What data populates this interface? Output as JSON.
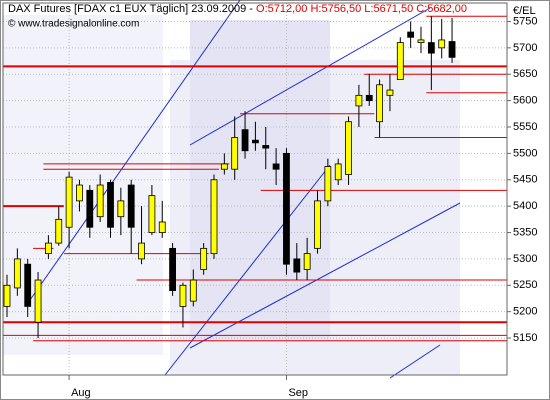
{
  "chart_data": {
    "type": "candlestick",
    "header": "DAX Futures [FDAX c1 EUX  Täglich] 23.09.2009 -",
    "header_values": "O:5712,00 H:5756,50 L:5671,50 C:5682,00",
    "watermark": "© www.tradesignalonline.com",
    "y_axis_label": "€/EL",
    "categories": [
      null,
      null,
      null,
      null,
      null,
      null,
      "Aug",
      null,
      null,
      null,
      null,
      null,
      null,
      null,
      null,
      null,
      null,
      null,
      null,
      null,
      null,
      null,
      null,
      null,
      null,
      null,
      null,
      "Sep",
      null,
      null,
      null,
      null,
      null,
      null,
      null,
      null,
      null,
      null,
      null,
      null,
      null,
      null,
      null,
      null
    ],
    "open": [
      5210,
      5245,
      5290,
      5180,
      5310,
      5330,
      5360,
      5410,
      5430,
      5380,
      5445,
      5380,
      5440,
      5300,
      5350,
      5350,
      5320,
      5210,
      5220,
      5280,
      5310,
      5470,
      5470,
      5545,
      5525,
      5515,
      5480,
      5500,
      5300,
      5280,
      5320,
      5410,
      5450,
      5460,
      5590,
      5610,
      5560,
      5610,
      5640,
      5730,
      5710,
      5710,
      5700,
      5712
    ],
    "high": [
      5270,
      5320,
      5300,
      5275,
      5345,
      5400,
      5465,
      5450,
      5440,
      5460,
      5450,
      5435,
      5450,
      5400,
      5440,
      5410,
      5330,
      5255,
      5280,
      5330,
      5460,
      5500,
      5570,
      5580,
      5560,
      5550,
      5510,
      5510,
      5330,
      5340,
      5430,
      5490,
      5490,
      5570,
      5630,
      5650,
      5640,
      5650,
      5720,
      5750,
      5740,
      5760,
      5755,
      5756.5
    ],
    "low": [
      5190,
      5230,
      5190,
      5150,
      5300,
      5325,
      5320,
      5390,
      5340,
      5370,
      5340,
      5345,
      5310,
      5290,
      5345,
      5340,
      5230,
      5170,
      5210,
      5270,
      5300,
      5460,
      5450,
      5490,
      5505,
      5470,
      5440,
      5270,
      5260,
      5260,
      5310,
      5400,
      5440,
      5440,
      5550,
      5590,
      5530,
      5580,
      5640,
      5700,
      5690,
      5620,
      5680,
      5671.5
    ],
    "close": [
      5250,
      5300,
      5210,
      5260,
      5330,
      5375,
      5455,
      5440,
      5360,
      5440,
      5360,
      5410,
      5360,
      5330,
      5420,
      5370,
      5240,
      5250,
      5260,
      5320,
      5450,
      5480,
      5530,
      5505,
      5520,
      5510,
      5470,
      5290,
      5275,
      5310,
      5410,
      5475,
      5480,
      5560,
      5610,
      5600,
      5630,
      5620,
      5710,
      5720,
      5715,
      5690,
      5715,
      5682
    ],
    "up_color": "#ffff00",
    "down_color": "#000000",
    "level_color": "#e00000",
    "levels": [
      {
        "value": 5665,
        "start": 0,
        "end": 48,
        "thick": true
      },
      {
        "value": 5400,
        "start": 0,
        "end": 5,
        "thick": true
      },
      {
        "value": 5180,
        "start": 0,
        "end": 48,
        "thick": true
      },
      {
        "value": 5155,
        "start": 0,
        "end": 48,
        "thick": false
      },
      {
        "value": 5145,
        "start": 3,
        "end": 48,
        "thick": false
      },
      {
        "value": 5480,
        "start": 4,
        "end": 21,
        "thick": false
      },
      {
        "value": 5470,
        "start": 4,
        "end": 20,
        "thick": false
      },
      {
        "value": 5320,
        "start": 3,
        "end": 4,
        "thick": false
      },
      {
        "value": 5310,
        "start": 6,
        "end": 19,
        "thick": false
      },
      {
        "value": 5260,
        "start": 13,
        "end": 48,
        "thick": false
      },
      {
        "value": 5575,
        "start": 23,
        "end": 35,
        "thick": false
      },
      {
        "value": 5430,
        "start": 25,
        "end": 48,
        "thick": false
      },
      {
        "value": 5530,
        "start": 36,
        "end": 48,
        "thick": false
      },
      {
        "value": 5650,
        "start": 35,
        "end": 48,
        "thick": false
      },
      {
        "value": 5615,
        "start": 41,
        "end": 48,
        "thick": false
      },
      {
        "value": 5760,
        "start": 41,
        "end": 48,
        "thick": false
      }
    ],
    "ylim": [
      5080,
      5785
    ],
    "yticks": [
      5150,
      5200,
      5250,
      5300,
      5350,
      5400,
      5450,
      5500,
      5550,
      5600,
      5650,
      5700,
      5750
    ],
    "grid": true
  }
}
